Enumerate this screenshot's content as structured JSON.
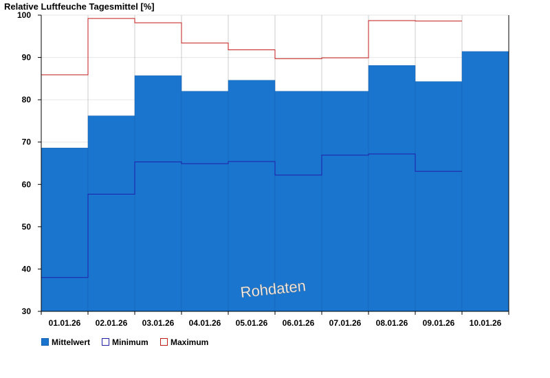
{
  "chart_data": {
    "type": "bar",
    "title": "Relative Luftfeuche Tagesmittel [%]",
    "categories": [
      "01.01.26",
      "02.01.26",
      "03.01.26",
      "04.01.26",
      "05.01.26",
      "06.01.26",
      "07.01.26",
      "08.01.26",
      "09.01.26",
      "10.01.26"
    ],
    "ylim": [
      30,
      100
    ],
    "yticks": [
      "100",
      "90",
      "80",
      "70",
      "60",
      "50",
      "40",
      "30"
    ],
    "series": [
      {
        "name": "Mittelwert",
        "type": "bar",
        "values": [
          68.6,
          76.2,
          85.7,
          82.0,
          84.6,
          82.0,
          82.0,
          88.1,
          84.3,
          91.4
        ]
      },
      {
        "name": "Minimum",
        "type": "step",
        "values": [
          38.0,
          57.7,
          65.3,
          64.9,
          65.4,
          62.2,
          66.9,
          67.2,
          63.1,
          null
        ]
      },
      {
        "name": "Maximum",
        "type": "step",
        "values": [
          85.9,
          99.2,
          98.2,
          93.4,
          91.8,
          89.7,
          89.9,
          98.7,
          98.6,
          null
        ]
      }
    ],
    "legend_position": "bottom-left",
    "grid": true,
    "annotation": "Rohdaten"
  },
  "colors": {
    "bar": "#1a75cf",
    "bar_edge": "#1560b0",
    "minimum": "#1f1fa8",
    "maximum": "#c21a1a",
    "grid": "#e6e6e6",
    "axis": "#000000"
  }
}
